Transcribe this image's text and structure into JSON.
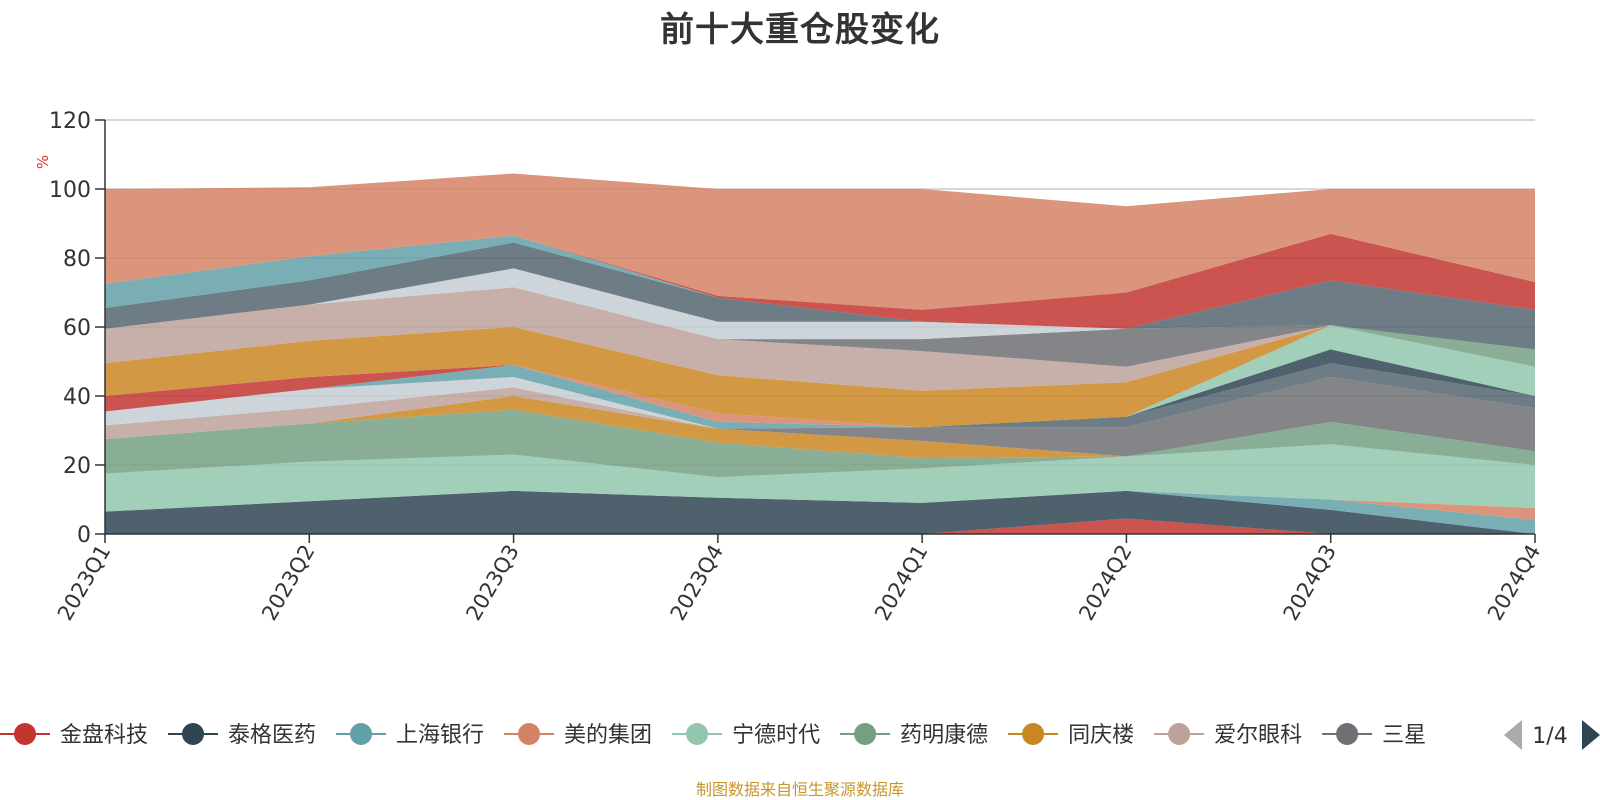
{
  "chart_data": {
    "type": "area",
    "stacked": true,
    "title": "前十大重仓股变化",
    "ylabel": "%",
    "ylim": [
      0,
      120
    ],
    "yticks": [
      0,
      20,
      40,
      60,
      80,
      100,
      120
    ],
    "grid": true,
    "categories": [
      "2023Q1",
      "2023Q2",
      "2023Q3",
      "2023Q4",
      "2024Q1",
      "2024Q2",
      "2024Q3",
      "2024Q4"
    ],
    "legend": {
      "position": "bottom",
      "page": "1/4",
      "visible_items": [
        "金盘科技",
        "泰格医药",
        "上海银行",
        "美的集团",
        "宁德时代",
        "药明康德",
        "同庆楼",
        "爱尔眼科",
        "三星"
      ]
    },
    "series": [
      {
        "name": "金盘科技",
        "color": "#c23531",
        "values": [
          0,
          0,
          0,
          0,
          0,
          4.5,
          0,
          0
        ]
      },
      {
        "name": "泰格医药",
        "color": "#2f4554",
        "values": [
          6.5,
          9.5,
          12.5,
          10.5,
          9,
          8,
          7,
          0
        ]
      },
      {
        "name": "上海银行",
        "color": "#61a0a8",
        "values": [
          0,
          0,
          0,
          0,
          0,
          0,
          3,
          4
        ]
      },
      {
        "name": "美的集团",
        "color": "#d48265",
        "values": [
          0,
          0,
          0,
          0,
          0,
          0,
          0,
          3.5
        ]
      },
      {
        "name": "宁德时代",
        "color": "#91c7ae",
        "values": [
          11,
          11.5,
          10.5,
          6,
          10,
          10,
          16,
          12.5
        ]
      },
      {
        "name": "药明康德",
        "color": "#749f83",
        "values": [
          10,
          11,
          13,
          10,
          3,
          0,
          6.5,
          4
        ]
      },
      {
        "name": "同庆楼",
        "color": "#ca8622",
        "values": [
          0,
          0,
          4,
          4,
          5,
          0,
          0,
          0
        ]
      },
      {
        "name": "爱尔眼科",
        "color": "#bda29a",
        "values": [
          4,
          4.5,
          2.5,
          0,
          0,
          0,
          0,
          0
        ]
      },
      {
        "name": "三星",
        "color": "#6e7074",
        "values": [
          0,
          0,
          0,
          0,
          4,
          8.5,
          13,
          12.5
        ]
      },
      {
        "name": "",
        "color": "#546570",
        "values": [
          0,
          0,
          0,
          0,
          0,
          3,
          4,
          3.5
        ]
      },
      {
        "name": "",
        "color": "#c4ccd3",
        "values": [
          4,
          5.5,
          3,
          0,
          0,
          0,
          0,
          0
        ]
      },
      {
        "name": "",
        "color": "#61a0a8",
        "values": [
          0,
          0,
          3.5,
          2,
          0,
          0,
          0,
          0
        ]
      },
      {
        "name": "",
        "color": "#c23531",
        "values": [
          4.5,
          3.5,
          0,
          0,
          0,
          0,
          0,
          0
        ]
      },
      {
        "name": "",
        "color": "#d48265",
        "values": [
          0,
          0,
          0,
          2.5,
          0,
          0,
          0,
          0
        ]
      },
      {
        "name": "",
        "color": "#2f4554",
        "values": [
          0,
          0,
          0,
          0,
          0,
          0,
          4,
          0
        ]
      },
      {
        "name": "",
        "color": "#91c7ae",
        "values": [
          0,
          0,
          0,
          0,
          0,
          0,
          7,
          8.5
        ]
      },
      {
        "name": "",
        "color": "#749f83",
        "values": [
          0,
          0,
          0,
          0,
          0,
          0,
          0,
          5
        ]
      },
      {
        "name": "",
        "color": "#ca8622",
        "values": [
          9.5,
          10.5,
          11,
          11,
          10.5,
          10,
          0,
          0
        ]
      },
      {
        "name": "",
        "color": "#bda29a",
        "values": [
          10,
          10.5,
          11.5,
          10.5,
          11.5,
          4.5,
          0,
          0
        ]
      },
      {
        "name": "",
        "color": "#6e7074",
        "values": [
          0,
          0,
          0,
          0,
          3.5,
          11,
          0,
          0
        ]
      },
      {
        "name": "",
        "color": "#c4ccd3",
        "values": [
          0,
          0,
          5.5,
          5,
          5,
          0,
          0,
          0
        ]
      },
      {
        "name": "",
        "color": "#546570",
        "values": [
          6,
          7,
          7.5,
          7,
          0,
          0,
          13,
          11.5
        ]
      },
      {
        "name": "",
        "color": "#61a0a8",
        "values": [
          7,
          7,
          2,
          0,
          0,
          0,
          0,
          0
        ]
      },
      {
        "name": "",
        "color": "#c23531",
        "values": [
          0,
          0,
          0,
          0.5,
          3.5,
          10.5,
          13.5,
          8
        ]
      },
      {
        "name": "",
        "color": "#d48265",
        "values": [
          27.5,
          20,
          18,
          31,
          35,
          25,
          13,
          27
        ]
      }
    ]
  },
  "source_note": "制图数据来自恒生聚源数据库"
}
